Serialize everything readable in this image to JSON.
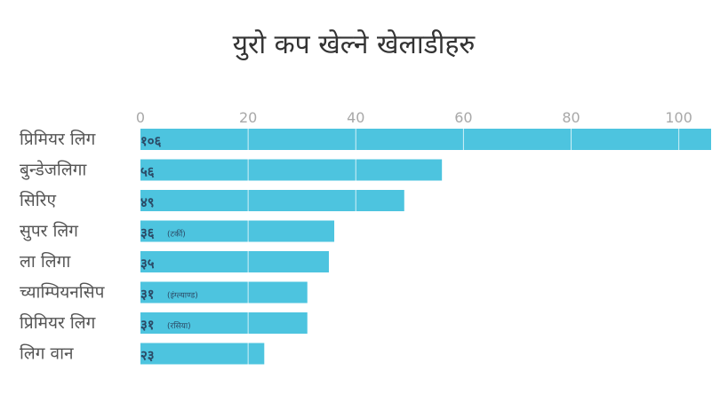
{
  "chart_data": {
    "type": "bar",
    "orientation": "horizontal",
    "title": "युरो कप खेल्ने खेलाडीहरु",
    "xlabel": "",
    "ylabel": "",
    "xlim": [
      0,
      106
    ],
    "ticks": [
      0,
      20,
      40,
      60,
      80,
      100
    ],
    "tick_labels": [
      "0",
      "20",
      "40",
      "60",
      "80",
      "100"
    ],
    "categories": [
      "प्रिमियर लिग",
      "बुन्डेजलिगा",
      "सिरिए",
      "सुपर लिग",
      "ला लिगा",
      "च्याम्पियनसिप",
      "प्रिमियर लिग",
      "लिग वान"
    ],
    "values": [
      106,
      56,
      49,
      36,
      35,
      31,
      31,
      23
    ],
    "data_labels": [
      "१०६",
      "५६",
      "४९",
      "३६",
      "३५",
      "३१",
      "३१",
      "२३"
    ],
    "data_notes": [
      "",
      "",
      "",
      "(टर्की)",
      "",
      "(इंग्ल्याण्ड)",
      "(रसिया)",
      ""
    ],
    "bar_color": "#4dc4df",
    "grid": true,
    "legend": "none"
  }
}
